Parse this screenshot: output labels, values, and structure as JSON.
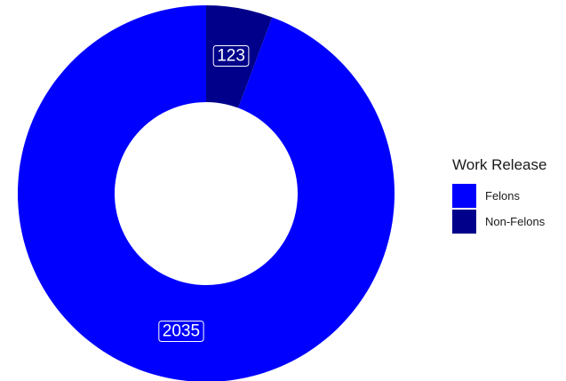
{
  "chart_data": {
    "type": "pie",
    "donut": true,
    "legend_title": "Work Release",
    "legend_position": "right",
    "categories": [
      "Felons",
      "Non-Felons"
    ],
    "values": [
      2035,
      123
    ],
    "colors": [
      "#0000ff",
      "#00008b"
    ],
    "data_labels": [
      "2035",
      "123"
    ],
    "start": "top",
    "direction": "counterclockwise"
  }
}
